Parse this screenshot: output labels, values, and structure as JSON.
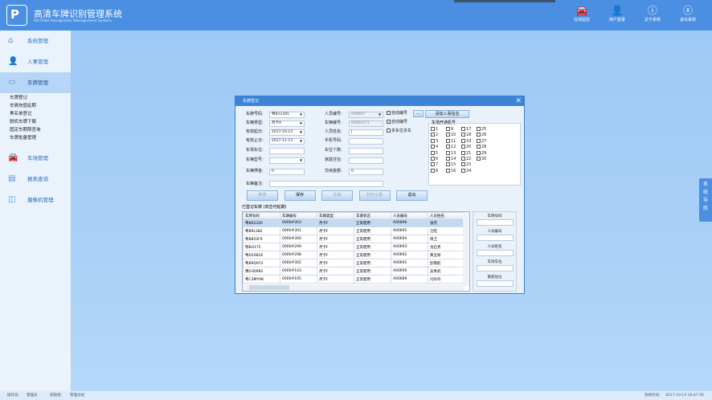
{
  "header": {
    "logo": "P",
    "title": "高清车牌识别管理系统",
    "subtitle": "HD Plate Recognition Management System",
    "buttons": [
      {
        "icon": "car-icon",
        "label": "在线监控"
      },
      {
        "icon": "user-icon",
        "label": "用户登录"
      },
      {
        "icon": "info-icon",
        "label": "关于系统"
      },
      {
        "icon": "close-circle-icon",
        "label": "退出系统"
      }
    ]
  },
  "sidebar": {
    "items": [
      {
        "icon": "home-icon",
        "label": "系统管理"
      },
      {
        "icon": "person-icon",
        "label": "人事管理"
      },
      {
        "icon": "plate-icon",
        "label": "车牌管理",
        "active": true
      },
      {
        "icon": "parking-icon",
        "label": "车场管理"
      },
      {
        "icon": "report-icon",
        "label": "报表查询"
      },
      {
        "icon": "camera-icon",
        "label": "摄像机管理"
      }
    ],
    "subitems": [
      "车牌登记",
      "车辆充值延期",
      "黑名单登记",
      "脱机车牌下载",
      "固定车期限查询",
      "车牌批量管理"
    ]
  },
  "side_tab": "系统导航",
  "status": {
    "operator_label": "操作员：",
    "operator": "管理员",
    "group_label": "权限组：",
    "group": "管理员组",
    "time_label": "系统时间：",
    "time": "2017-10-13 16:47:56"
  },
  "dialog": {
    "title": "车牌登记",
    "left_fields": [
      {
        "label": "车牌号码:",
        "value": "粤B12345",
        "dropdown": true
      },
      {
        "label": "车辆类型:",
        "value": "月卡A",
        "dropdown": true
      },
      {
        "label": "有效起日:",
        "value": "2017-10-13",
        "dropdown": true
      },
      {
        "label": "有效止日:",
        "value": "2017-11-13",
        "dropdown": true
      },
      {
        "label": "车场车位:",
        "value": ""
      },
      {
        "label": "车辆型号:",
        "value": "",
        "dropdown": true
      },
      {
        "label": "车辆押金:",
        "value": "0"
      }
    ],
    "right_fields": [
      {
        "label": "人员编号:",
        "value": "A00697",
        "dropdown": true,
        "disabled": true
      },
      {
        "label": "车辆编号:",
        "value": "00000571",
        "disabled": true
      },
      {
        "label": "人员姓名:",
        "value": "|"
      },
      {
        "label": "手机号码:",
        "value": ""
      },
      {
        "label": "车位个数:",
        "value": ""
      },
      {
        "label": "家庭住址:",
        "value": ""
      },
      {
        "label": "交纳金额:",
        "value": "0"
      }
    ],
    "remark_label": "车辆备注:",
    "remark_value": "",
    "checks": [
      {
        "label": "自动编号",
        "checked": true
      },
      {
        "label": "自动编号",
        "checked": true
      },
      {
        "label": "多车位多车",
        "checked": false
      }
    ],
    "more_button": "...",
    "add_person_button": "添加人事信息",
    "gate_group": "车场开通机号",
    "gates": [
      "1",
      "2",
      "3",
      "4",
      "5",
      "6",
      "7",
      "8",
      "9",
      "10",
      "11",
      "12",
      "13",
      "14",
      "15",
      "16",
      "17",
      "18",
      "19",
      "20",
      "21",
      "22",
      "23",
      "24",
      "25",
      "26",
      "27",
      "28",
      "29",
      "30"
    ],
    "buttons": [
      {
        "label": "新增",
        "enabled": false
      },
      {
        "label": "保存",
        "enabled": true
      },
      {
        "label": "注销",
        "enabled": false
      },
      {
        "label": "打印小票",
        "enabled": false
      },
      {
        "label": "退出",
        "enabled": true
      }
    ],
    "table_title": "已登记车牌 (双击可延期)",
    "columns": [
      "车牌号码",
      "车辆编号",
      "车辆类型",
      "车辆状态",
      "人员编号",
      "人员姓名"
    ],
    "rows": [
      [
        "粤B62326",
        "0000#303",
        "月卡F",
        "正常使用",
        "A00696",
        "张杰"
      ],
      [
        "粤B9L382",
        "0000#301",
        "月卡F",
        "正常使用",
        "A00695",
        "汪旺"
      ],
      [
        "粤B852F9",
        "0000#300",
        "月卡F",
        "正常使用",
        "A00694",
        "周卫"
      ],
      [
        "鄂BH175",
        "0000#299",
        "月卡F",
        "正常使用",
        "A00693",
        "戈启贵"
      ],
      [
        "粤D19816",
        "0000#298",
        "月卡F",
        "正常使用",
        "A00692",
        "黄玉娇"
      ],
      [
        "粤B9Q972",
        "0000#302",
        "月卡F",
        "正常使用",
        "A00691",
        "彭锦航"
      ],
      [
        "豫G30982",
        "0000#143",
        "月卡F",
        "正常使用",
        "A00690",
        "吴秀武"
      ],
      [
        "粤C3MY98",
        "0000#105",
        "月卡F",
        "正常使用",
        "A00689",
        "闫丹丹"
      ]
    ],
    "search_labels": [
      "车牌号码",
      "人员编号",
      "人员姓名",
      "车场车位",
      "家庭住址"
    ]
  }
}
